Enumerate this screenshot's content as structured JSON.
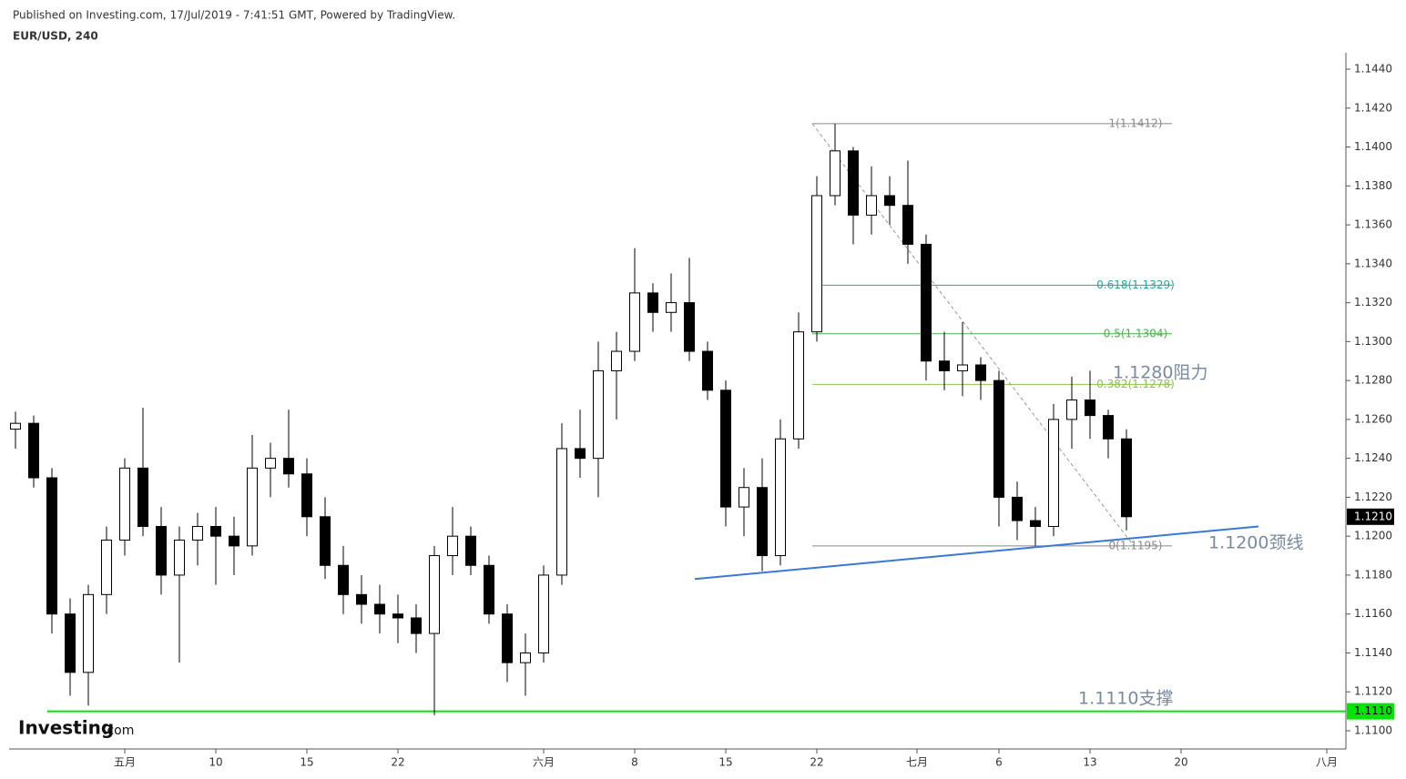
{
  "header": {
    "published": "Published on Investing.com, 17/Jul/2019 - 7:41:51 GMT, Powered by TradingView.",
    "symbol": "EUR/USD, 240",
    "logo": "Investing",
    "logo_suffix": ".com"
  },
  "chart_data": {
    "type": "candlestick",
    "x": [
      -1,
      0,
      1,
      2,
      3,
      4,
      5,
      6,
      7,
      8,
      9,
      10,
      11,
      12,
      13,
      14,
      15,
      16,
      17,
      18,
      19,
      20,
      21,
      22,
      23,
      24,
      25,
      26,
      27,
      28,
      29,
      30,
      31,
      32,
      33,
      34,
      35,
      36,
      37,
      38,
      39,
      40,
      41,
      42,
      43,
      44,
      45,
      46,
      47,
      48,
      49,
      50,
      51,
      52,
      53,
      54,
      55,
      56,
      57,
      58,
      59,
      60
    ],
    "candles": [
      [
        1.1255,
        1.1264,
        1.1245,
        1.1258
      ],
      [
        1.1258,
        1.1262,
        1.1225,
        1.123
      ],
      [
        1.123,
        1.1235,
        1.115,
        1.116
      ],
      [
        1.116,
        1.1168,
        1.1118,
        1.113
      ],
      [
        1.113,
        1.1175,
        1.1113,
        1.117
      ],
      [
        1.117,
        1.1205,
        1.116,
        1.1198
      ],
      [
        1.1198,
        1.124,
        1.119,
        1.1235
      ],
      [
        1.1235,
        1.1266,
        1.12,
        1.1205
      ],
      [
        1.1205,
        1.1215,
        1.117,
        1.118
      ],
      [
        1.118,
        1.1205,
        1.1135,
        1.1198
      ],
      [
        1.1198,
        1.1212,
        1.1185,
        1.1205
      ],
      [
        1.1205,
        1.1215,
        1.1175,
        1.12
      ],
      [
        1.12,
        1.121,
        1.118,
        1.1195
      ],
      [
        1.1195,
        1.1252,
        1.119,
        1.1235
      ],
      [
        1.1235,
        1.1248,
        1.122,
        1.124
      ],
      [
        1.124,
        1.1265,
        1.1225,
        1.1232
      ],
      [
        1.1232,
        1.124,
        1.12,
        1.121
      ],
      [
        1.121,
        1.122,
        1.1178,
        1.1185
      ],
      [
        1.1185,
        1.1195,
        1.116,
        1.117
      ],
      [
        1.117,
        1.118,
        1.1155,
        1.1165
      ],
      [
        1.1165,
        1.1175,
        1.115,
        1.116
      ],
      [
        1.116,
        1.117,
        1.1145,
        1.1158
      ],
      [
        1.1158,
        1.1165,
        1.114,
        1.115
      ],
      [
        1.115,
        1.1195,
        1.1108,
        1.119
      ],
      [
        1.119,
        1.1215,
        1.118,
        1.12
      ],
      [
        1.12,
        1.1205,
        1.118,
        1.1185
      ],
      [
        1.1185,
        1.119,
        1.1155,
        1.116
      ],
      [
        1.116,
        1.1165,
        1.1125,
        1.1135
      ],
      [
        1.1135,
        1.115,
        1.1118,
        1.114
      ],
      [
        1.114,
        1.1185,
        1.1135,
        1.118
      ],
      [
        1.118,
        1.1258,
        1.1175,
        1.1245
      ],
      [
        1.1245,
        1.1265,
        1.123,
        1.124
      ],
      [
        1.124,
        1.13,
        1.122,
        1.1285
      ],
      [
        1.1285,
        1.1305,
        1.126,
        1.1295
      ],
      [
        1.1295,
        1.1348,
        1.129,
        1.1325
      ],
      [
        1.1325,
        1.133,
        1.1305,
        1.1315
      ],
      [
        1.1315,
        1.1335,
        1.1305,
        1.132
      ],
      [
        1.132,
        1.1343,
        1.129,
        1.1295
      ],
      [
        1.1295,
        1.13,
        1.127,
        1.1275
      ],
      [
        1.1275,
        1.128,
        1.1205,
        1.1215
      ],
      [
        1.1215,
        1.1235,
        1.12,
        1.1225
      ],
      [
        1.1225,
        1.124,
        1.1182,
        1.119
      ],
      [
        1.119,
        1.126,
        1.1185,
        1.125
      ],
      [
        1.125,
        1.1315,
        1.1245,
        1.1305
      ],
      [
        1.1305,
        1.1385,
        1.13,
        1.1375
      ],
      [
        1.1375,
        1.1412,
        1.137,
        1.1398
      ],
      [
        1.1398,
        1.14,
        1.135,
        1.1365
      ],
      [
        1.1365,
        1.139,
        1.1355,
        1.1375
      ],
      [
        1.1375,
        1.1385,
        1.136,
        1.137
      ],
      [
        1.137,
        1.1393,
        1.134,
        1.135
      ],
      [
        1.135,
        1.1355,
        1.128,
        1.129
      ],
      [
        1.129,
        1.1305,
        1.1275,
        1.1285
      ],
      [
        1.1285,
        1.131,
        1.1272,
        1.1288
      ],
      [
        1.1288,
        1.1292,
        1.127,
        1.128
      ],
      [
        1.128,
        1.1285,
        1.1205,
        1.122
      ],
      [
        1.122,
        1.1228,
        1.1198,
        1.1208
      ],
      [
        1.1208,
        1.1215,
        1.1195,
        1.1205
      ],
      [
        1.1205,
        1.1268,
        1.12,
        1.126
      ],
      [
        1.126,
        1.1282,
        1.1245,
        1.127
      ],
      [
        1.127,
        1.1285,
        1.125,
        1.1262
      ],
      [
        1.1262,
        1.1265,
        1.124,
        1.125
      ],
      [
        1.125,
        1.1255,
        1.1203,
        1.121
      ]
    ],
    "xlim": [
      -1.35,
      72.05
    ],
    "xticks": [
      {
        "value": 5,
        "label": "五月"
      },
      10,
      {
        "value": 15,
        "label": "15"
      },
      {
        "value": 20,
        "label": "22"
      },
      {
        "value": 28,
        "label": "六月"
      },
      {
        "value": 33,
        "label": "8"
      },
      {
        "value": 38,
        "label": "15"
      },
      {
        "value": 43,
        "label": "22"
      },
      {
        "value": 48.5,
        "label": "七月"
      },
      {
        "value": 53,
        "label": "6"
      },
      {
        "value": 58,
        "label": "13"
      },
      {
        "value": 63,
        "label": "20"
      },
      {
        "value": 71,
        "label": "八月"
      }
    ],
    "ylim": [
      1.11,
      1.144
    ],
    "yticks": [
      {
        "value": 1.11,
        "label": "1.1100"
      },
      {
        "value": 1.112,
        "label": "1.1120"
      },
      {
        "value": 1.114,
        "label": "1.1140"
      },
      {
        "value": 1.116,
        "label": "1.1160"
      },
      {
        "value": 1.118,
        "label": "1.1180"
      },
      {
        "value": 1.12,
        "label": "1.1200"
      },
      {
        "value": 1.122,
        "label": "1.1220"
      },
      {
        "value": 1.124,
        "label": "1.1240"
      },
      {
        "value": 1.126,
        "label": "1.1260"
      },
      {
        "value": 1.128,
        "label": "1.1280"
      },
      {
        "value": 1.13,
        "label": "1.1300"
      },
      {
        "value": 1.132,
        "label": "1.1320"
      },
      {
        "value": 1.134,
        "label": "1.1340"
      },
      {
        "value": 1.136,
        "label": "1.1360"
      },
      {
        "value": 1.138,
        "label": "1.1380"
      },
      {
        "value": 1.14,
        "label": "1.1400"
      },
      {
        "value": 1.142,
        "label": "1.1420"
      },
      {
        "value": 1.144,
        "label": "1.1440"
      }
    ],
    "fib": {
      "x": [
        42.75,
        62.5
      ],
      "levels": [
        {
          "value": 1.1412,
          "label": "1(1.1412)",
          "color": "#888888"
        },
        {
          "value": 1.1329,
          "label": "0.618(1.1329)",
          "color": "#26a69a"
        },
        {
          "value": 1.1304,
          "label": "0.5(1.1304)",
          "color": "#4caf50"
        },
        {
          "value": 1.1278,
          "label": "0.382(1.1278)",
          "color": "#8bc34a"
        },
        {
          "value": 1.1195,
          "label": "0(1.1195)",
          "color": "#888888"
        }
      ],
      "trend_end_x": 60.4
    },
    "neckline": {
      "x": [
        36.3,
        67.25
      ],
      "y": [
        1.1178,
        1.1205
      ],
      "color": "#3a78d8"
    },
    "support": {
      "value": 1.111,
      "color": "#00e600"
    },
    "annotations": [
      "1.1280阻力",
      "1.1200颈线",
      "1.1110支撑"
    ],
    "price_labels": [
      {
        "value": 1.121,
        "label": "1.1210",
        "color": "#000000"
      },
      {
        "value": 1.111,
        "label": "1.1110",
        "color": "#00e600"
      }
    ]
  }
}
